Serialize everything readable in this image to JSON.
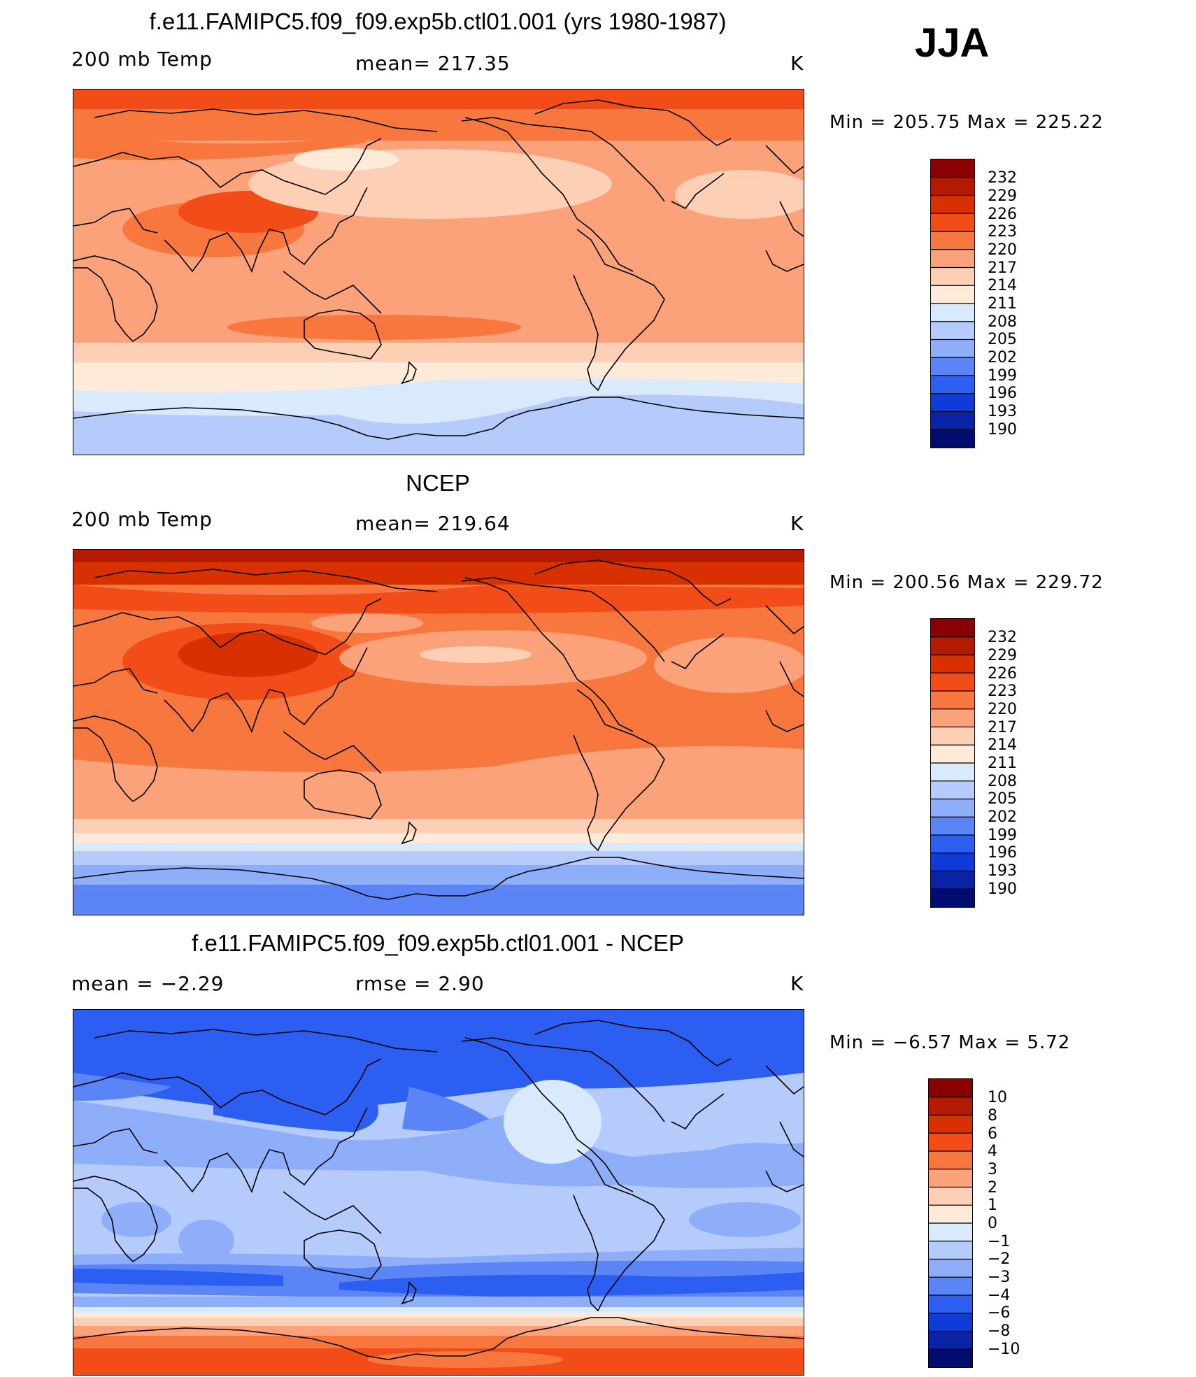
{
  "season": "JJA",
  "panels": [
    {
      "id": "model",
      "title": "f.e11.FAMIPC5.f09_f09.exp5b.ctl01.001 (yrs 1980-1987)",
      "left_label": "200 mb Temp",
      "center_label": "mean= 217.35",
      "units": "K",
      "minmax": "Min = 205.75 Max = 225.22",
      "levels": [
        "232",
        "229",
        "226",
        "223",
        "220",
        "217",
        "214",
        "211",
        "208",
        "205",
        "202",
        "199",
        "196",
        "193",
        "190"
      ]
    },
    {
      "id": "obs",
      "title": "NCEP",
      "left_label": "200 mb Temp",
      "center_label": "mean= 219.64",
      "units": "K",
      "minmax": "Min = 200.56 Max = 229.72",
      "levels": [
        "232",
        "229",
        "226",
        "223",
        "220",
        "217",
        "214",
        "211",
        "208",
        "205",
        "202",
        "199",
        "196",
        "193",
        "190"
      ]
    },
    {
      "id": "diff",
      "title": "f.e11.FAMIPC5.f09_f09.exp5b.ctl01.001 - NCEP",
      "left_label": "mean =   −2.29",
      "center_label": "rmse =    2.90",
      "units": "K",
      "minmax": "Min =  −6.57 Max =    5.72",
      "levels": [
        "10",
        "8",
        "6",
        "4",
        "3",
        "2",
        "1",
        "0",
        "−1",
        "−2",
        "−3",
        "−4",
        "−6",
        "−8",
        "−10"
      ]
    }
  ],
  "colors": [
    "#8b0000",
    "#b31a00",
    "#d93000",
    "#f24d18",
    "#f8773f",
    "#fba27a",
    "#fdcfb4",
    "#feead9",
    "#d9eafc",
    "#b4cbfb",
    "#8eaefa",
    "#5b85f7",
    "#2d5ef2",
    "#0f3bd8",
    "#0a22a6",
    "#020b6e"
  ]
}
